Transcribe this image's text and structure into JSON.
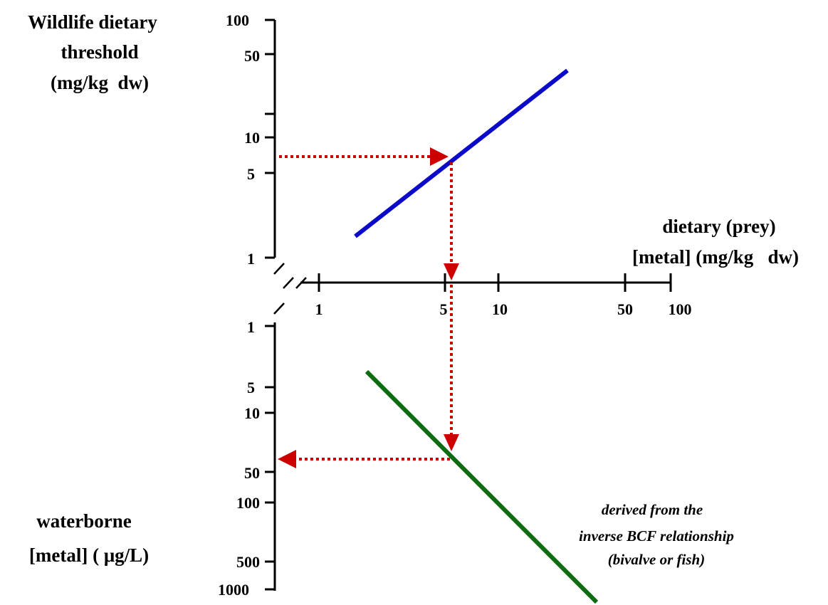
{
  "colors": {
    "dietary_line": "#0a0ac8",
    "waterborne_line": "#0d6b10",
    "arrow": "#cc0000",
    "axis": "#000000"
  },
  "top_axis": {
    "title": [
      "Wildlife dietary",
      "threshold",
      "(mg/kg  dw)"
    ],
    "ticks": [
      "100",
      "50",
      "10",
      "5",
      "1"
    ]
  },
  "middle_axis": {
    "title": [
      "dietary (prey)",
      "[metal] (mg/kg   dw)"
    ],
    "ticks": [
      "1",
      "5",
      "10",
      "50",
      "100"
    ]
  },
  "bottom_axis": {
    "title": [
      "waterborne",
      "[metal] ( μg/L)"
    ],
    "ticks": [
      "1",
      "5",
      "10",
      "50",
      "100",
      "500",
      "1000"
    ]
  },
  "annotation": [
    "derived from the",
    "inverse BCF relationship",
    "(bivalve or fish)"
  ]
}
